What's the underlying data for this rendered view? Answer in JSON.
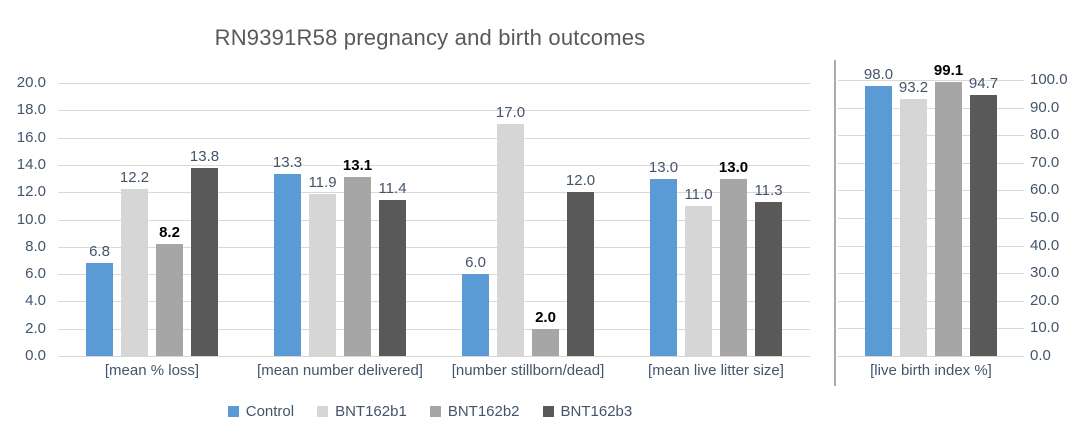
{
  "title": "RN9391R58 pregnancy and birth outcomes",
  "colors": {
    "control": "#5B9BD5",
    "bnt162b1": "#D6D6D6",
    "bnt162b2": "#A6A6A6",
    "bnt162b3": "#595959",
    "gridline": "#D9D9D9",
    "divider": "#ABABAB",
    "axis_text": "#44546A",
    "title_text": "#595959",
    "data_label": "#44546A",
    "data_label_emphasis": "#000000"
  },
  "legend": {
    "items": [
      {
        "label": "Control",
        "color": "#5B9BD5"
      },
      {
        "label": "BNT162b1",
        "color": "#D6D6D6"
      },
      {
        "label": "BNT162b2",
        "color": "#A6A6A6"
      },
      {
        "label": "BNT162b3",
        "color": "#595959"
      }
    ],
    "position": "bottom"
  },
  "chart_data": [
    {
      "name": "pregnancy-outcomes-panel",
      "type": "bar",
      "title": "RN9391R58 pregnancy and birth outcomes",
      "categories": [
        "[mean % loss]",
        "[mean number delivered]",
        "[number stillborn/dead]",
        "[mean live litter size]"
      ],
      "series": [
        {
          "name": "Control",
          "color": "#5B9BD5",
          "values": [
            6.8,
            13.3,
            6.0,
            13.0
          ]
        },
        {
          "name": "BNT162b1",
          "color": "#D6D6D6",
          "values": [
            12.2,
            11.9,
            17.0,
            11.0
          ]
        },
        {
          "name": "BNT162b2",
          "color": "#A6A6A6",
          "values": [
            8.2,
            13.1,
            2.0,
            13.0
          ],
          "label_style": "bold-black"
        },
        {
          "name": "BNT162b3",
          "color": "#595959",
          "values": [
            13.8,
            11.4,
            12.0,
            11.3
          ]
        }
      ],
      "ylim": [
        0,
        20
      ],
      "yticks": [
        "20.0",
        "18.0",
        "16.0",
        "14.0",
        "12.0",
        "10.0",
        "8.0",
        "6.0",
        "4.0",
        "2.0",
        "0.0"
      ],
      "axis_side": "left",
      "grid": true,
      "data_labels": true,
      "label_decimals": 1
    },
    {
      "name": "live-birth-index-panel",
      "type": "bar",
      "title": "",
      "categories": [
        "[live birth index %]"
      ],
      "series": [
        {
          "name": "Control",
          "color": "#5B9BD5",
          "values": [
            98.0
          ]
        },
        {
          "name": "BNT162b1",
          "color": "#D6D6D6",
          "values": [
            93.2
          ]
        },
        {
          "name": "BNT162b2",
          "color": "#A6A6A6",
          "values": [
            99.1
          ],
          "label_style": "bold-black"
        },
        {
          "name": "BNT162b3",
          "color": "#595959",
          "values": [
            94.7
          ]
        }
      ],
      "ylim": [
        0,
        100
      ],
      "yticks": [
        "100.0",
        "90.0",
        "80.0",
        "70.0",
        "60.0",
        "50.0",
        "40.0",
        "30.0",
        "20.0",
        "10.0",
        "0.0"
      ],
      "axis_side": "right",
      "grid": true,
      "data_labels": true,
      "label_decimals": 1
    }
  ]
}
